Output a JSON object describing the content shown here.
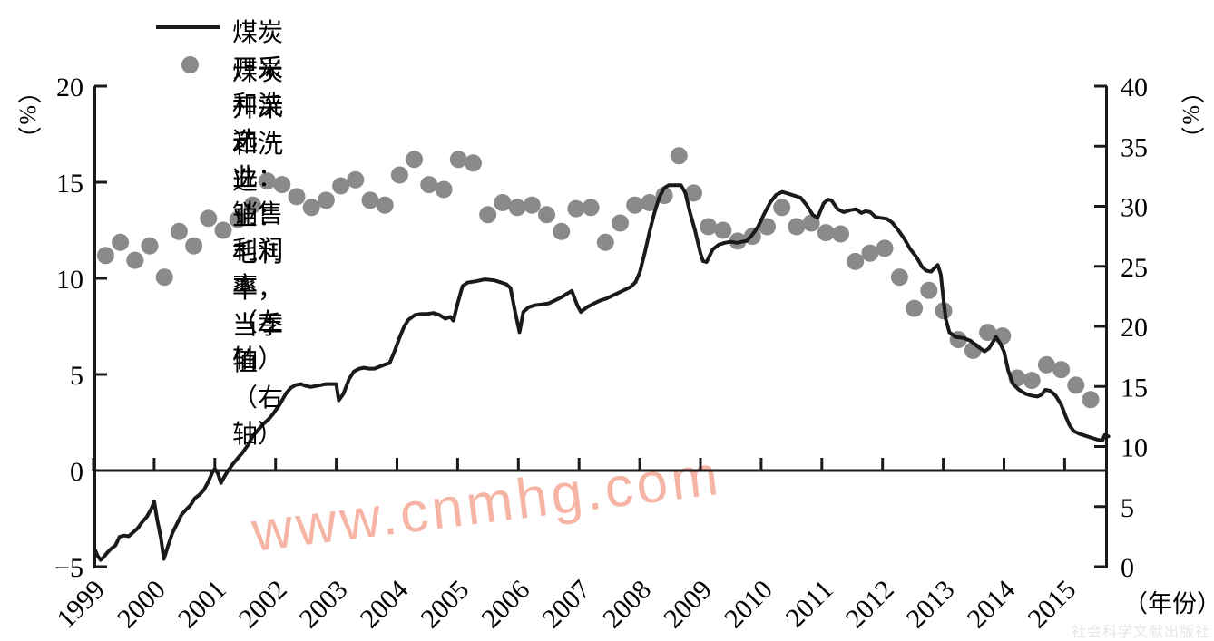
{
  "page": {
    "background": "#ffffff"
  },
  "legend": {
    "items": [
      {
        "label": "煤炭开采和洗选业：销售利润率（左轴）",
        "marker": "line",
        "color": "#1a1a1a"
      },
      {
        "label": "煤炭开采和洗选业：毛利率，当季值（右轴）",
        "marker": "dot",
        "color": "#8a8a8a"
      }
    ]
  },
  "watermark": {
    "text": "www.cnmhg.com",
    "color": "#f5a795"
  },
  "publisher_watermark": {
    "text": "社会科学文献出版社",
    "color": "#e6e6e6"
  },
  "chart_data": {
    "type": "line",
    "title": "",
    "grid": false,
    "left_axis": {
      "unit_label": "（%）",
      "ticks": [
        20,
        15,
        10,
        5,
        0,
        -5
      ],
      "range": [
        -5,
        20
      ]
    },
    "right_axis": {
      "unit_label": "（%）",
      "ticks": [
        40,
        35,
        30,
        25,
        20,
        15,
        10,
        5,
        0
      ],
      "range": [
        0,
        40
      ]
    },
    "x_axis": {
      "label": "（年份）",
      "ticks": [
        1999,
        2000,
        2001,
        2002,
        2003,
        2004,
        2005,
        2006,
        2007,
        2008,
        2009,
        2010,
        2011,
        2012,
        2013,
        2014,
        2015
      ],
      "range": [
        1999,
        2015.75
      ]
    },
    "series": [
      {
        "name": "煤炭开采和洗选业：销售利润率（左轴）",
        "type": "line",
        "axis": "left",
        "color": "#1a1a1a",
        "points": [
          [
            1999.03,
            -4.15
          ],
          [
            1999.07,
            -4.45
          ],
          [
            1999.12,
            -4.65
          ],
          [
            1999.17,
            -4.5
          ],
          [
            1999.22,
            -4.3
          ],
          [
            1999.28,
            -4.1
          ],
          [
            1999.36,
            -3.9
          ],
          [
            1999.43,
            -3.45
          ],
          [
            1999.51,
            -3.38
          ],
          [
            1999.58,
            -3.42
          ],
          [
            1999.66,
            -3.2
          ],
          [
            1999.73,
            -3.0
          ],
          [
            1999.81,
            -2.65
          ],
          [
            1999.88,
            -2.4
          ],
          [
            1999.96,
            -1.95
          ],
          [
            2000.0,
            -1.6
          ],
          [
            2000.05,
            -2.55
          ],
          [
            2000.11,
            -3.5
          ],
          [
            2000.16,
            -4.6
          ],
          [
            2000.23,
            -3.9
          ],
          [
            2000.3,
            -3.25
          ],
          [
            2000.38,
            -2.75
          ],
          [
            2000.45,
            -2.3
          ],
          [
            2000.52,
            -2.05
          ],
          [
            2000.6,
            -1.8
          ],
          [
            2000.67,
            -1.45
          ],
          [
            2000.75,
            -1.25
          ],
          [
            2000.82,
            -1.0
          ],
          [
            2000.89,
            -0.6
          ],
          [
            2000.96,
            -0.1
          ],
          [
            2001.0,
            0.1
          ],
          [
            2001.05,
            -0.15
          ],
          [
            2001.1,
            -0.65
          ],
          [
            2001.16,
            -0.3
          ],
          [
            2001.22,
            0.0
          ],
          [
            2001.3,
            0.35
          ],
          [
            2001.38,
            0.65
          ],
          [
            2001.46,
            0.95
          ],
          [
            2001.54,
            1.3
          ],
          [
            2001.63,
            1.8
          ],
          [
            2001.71,
            2.1
          ],
          [
            2001.79,
            2.4
          ],
          [
            2001.88,
            2.65
          ],
          [
            2001.96,
            2.95
          ],
          [
            2002.08,
            3.5
          ],
          [
            2002.17,
            4.0
          ],
          [
            2002.25,
            4.3
          ],
          [
            2002.33,
            4.45
          ],
          [
            2002.42,
            4.5
          ],
          [
            2002.5,
            4.4
          ],
          [
            2002.58,
            4.35
          ],
          [
            2002.67,
            4.4
          ],
          [
            2002.75,
            4.45
          ],
          [
            2002.83,
            4.5
          ],
          [
            2002.92,
            4.5
          ],
          [
            2003.0,
            4.5
          ],
          [
            2003.04,
            3.65
          ],
          [
            2003.12,
            4.0
          ],
          [
            2003.21,
            4.75
          ],
          [
            2003.29,
            5.15
          ],
          [
            2003.38,
            5.3
          ],
          [
            2003.46,
            5.35
          ],
          [
            2003.54,
            5.3
          ],
          [
            2003.63,
            5.3
          ],
          [
            2003.71,
            5.4
          ],
          [
            2003.79,
            5.5
          ],
          [
            2003.88,
            5.6
          ],
          [
            2003.96,
            6.2
          ],
          [
            2004.04,
            6.9
          ],
          [
            2004.12,
            7.5
          ],
          [
            2004.19,
            7.85
          ],
          [
            2004.3,
            8.1
          ],
          [
            2004.4,
            8.15
          ],
          [
            2004.5,
            8.15
          ],
          [
            2004.6,
            8.2
          ],
          [
            2004.7,
            8.1
          ],
          [
            2004.8,
            7.9
          ],
          [
            2004.88,
            8.0
          ],
          [
            2004.93,
            7.8
          ],
          [
            2005.0,
            8.7
          ],
          [
            2005.08,
            9.6
          ],
          [
            2005.16,
            9.78
          ],
          [
            2005.3,
            9.85
          ],
          [
            2005.45,
            9.95
          ],
          [
            2005.6,
            9.9
          ],
          [
            2005.7,
            9.8
          ],
          [
            2005.8,
            9.7
          ],
          [
            2005.87,
            9.5
          ],
          [
            2005.95,
            8.2
          ],
          [
            2006.02,
            7.2
          ],
          [
            2006.08,
            8.25
          ],
          [
            2006.17,
            8.5
          ],
          [
            2006.27,
            8.6
          ],
          [
            2006.4,
            8.65
          ],
          [
            2006.5,
            8.7
          ],
          [
            2006.6,
            8.85
          ],
          [
            2006.7,
            9.0
          ],
          [
            2006.8,
            9.2
          ],
          [
            2006.88,
            9.35
          ],
          [
            2006.97,
            8.6
          ],
          [
            2007.03,
            8.25
          ],
          [
            2007.13,
            8.5
          ],
          [
            2007.25,
            8.7
          ],
          [
            2007.35,
            8.85
          ],
          [
            2007.45,
            8.95
          ],
          [
            2007.55,
            9.1
          ],
          [
            2007.65,
            9.25
          ],
          [
            2007.75,
            9.4
          ],
          [
            2007.85,
            9.55
          ],
          [
            2007.93,
            9.8
          ],
          [
            2008.0,
            10.3
          ],
          [
            2008.08,
            11.3
          ],
          [
            2008.16,
            12.4
          ],
          [
            2008.24,
            13.4
          ],
          [
            2008.32,
            14.2
          ],
          [
            2008.4,
            14.7
          ],
          [
            2008.48,
            14.85
          ],
          [
            2008.58,
            14.85
          ],
          [
            2008.68,
            14.85
          ],
          [
            2008.75,
            14.45
          ],
          [
            2008.83,
            13.4
          ],
          [
            2008.91,
            12.5
          ],
          [
            2009.0,
            11.3
          ],
          [
            2009.04,
            10.9
          ],
          [
            2009.1,
            10.85
          ],
          [
            2009.2,
            11.5
          ],
          [
            2009.3,
            11.75
          ],
          [
            2009.4,
            11.85
          ],
          [
            2009.5,
            11.9
          ],
          [
            2009.6,
            11.85
          ],
          [
            2009.68,
            11.9
          ],
          [
            2009.76,
            11.95
          ],
          [
            2009.85,
            12.25
          ],
          [
            2009.95,
            12.7
          ],
          [
            2010.05,
            13.35
          ],
          [
            2010.15,
            13.95
          ],
          [
            2010.25,
            14.35
          ],
          [
            2010.35,
            14.5
          ],
          [
            2010.45,
            14.4
          ],
          [
            2010.55,
            14.3
          ],
          [
            2010.65,
            14.2
          ],
          [
            2010.75,
            13.8
          ],
          [
            2010.85,
            13.3
          ],
          [
            2010.93,
            13.15
          ],
          [
            2011.03,
            13.9
          ],
          [
            2011.1,
            14.1
          ],
          [
            2011.16,
            14.05
          ],
          [
            2011.26,
            13.6
          ],
          [
            2011.36,
            13.45
          ],
          [
            2011.47,
            13.55
          ],
          [
            2011.56,
            13.6
          ],
          [
            2011.65,
            13.4
          ],
          [
            2011.72,
            13.5
          ],
          [
            2011.8,
            13.45
          ],
          [
            2011.88,
            13.2
          ],
          [
            2011.96,
            13.15
          ],
          [
            2012.07,
            13.1
          ],
          [
            2012.16,
            12.9
          ],
          [
            2012.26,
            12.5
          ],
          [
            2012.36,
            12.05
          ],
          [
            2012.45,
            11.55
          ],
          [
            2012.56,
            11.1
          ],
          [
            2012.65,
            10.6
          ],
          [
            2012.72,
            10.4
          ],
          [
            2012.8,
            10.35
          ],
          [
            2012.86,
            10.55
          ],
          [
            2012.91,
            10.7
          ],
          [
            2012.96,
            10.2
          ],
          [
            2013.0,
            9.0
          ],
          [
            2013.04,
            7.9
          ],
          [
            2013.1,
            7.2
          ],
          [
            2013.2,
            6.95
          ],
          [
            2013.33,
            6.9
          ],
          [
            2013.45,
            6.75
          ],
          [
            2013.57,
            6.45
          ],
          [
            2013.68,
            6.2
          ],
          [
            2013.75,
            6.35
          ],
          [
            2013.82,
            6.7
          ],
          [
            2013.87,
            6.95
          ],
          [
            2013.94,
            6.6
          ],
          [
            2014.0,
            6.2
          ],
          [
            2014.07,
            5.2
          ],
          [
            2014.15,
            4.5
          ],
          [
            2014.25,
            4.2
          ],
          [
            2014.35,
            4.0
          ],
          [
            2014.45,
            3.9
          ],
          [
            2014.55,
            3.85
          ],
          [
            2014.62,
            3.95
          ],
          [
            2014.68,
            4.2
          ],
          [
            2014.76,
            4.15
          ],
          [
            2014.85,
            3.9
          ],
          [
            2014.94,
            3.45
          ],
          [
            2015.02,
            2.8
          ],
          [
            2015.08,
            2.35
          ],
          [
            2015.15,
            2.05
          ],
          [
            2015.25,
            1.9
          ],
          [
            2015.35,
            1.8
          ],
          [
            2015.45,
            1.7
          ],
          [
            2015.55,
            1.6
          ],
          [
            2015.62,
            1.55
          ],
          [
            2015.66,
            1.85
          ],
          [
            2015.72,
            1.78
          ]
        ]
      },
      {
        "name": "煤炭开采和洗选业：毛利率，当季值（右轴）",
        "type": "scatter",
        "axis": "right",
        "color": "#8a8a8a",
        "frequency": "quarterly",
        "start": "1999Q1",
        "x_first": 1999.2,
        "x_step": 0.2422,
        "values": [
          25.9,
          27.0,
          25.5,
          26.7,
          24.1,
          27.9,
          26.7,
          29.0,
          28.0,
          28.9,
          30.1,
          32.1,
          31.8,
          30.8,
          29.9,
          30.5,
          31.7,
          32.2,
          30.5,
          30.1,
          32.6,
          33.9,
          31.8,
          31.4,
          33.9,
          33.6,
          29.3,
          30.3,
          29.9,
          30.1,
          29.3,
          27.9,
          29.8,
          29.9,
          27.0,
          28.6,
          30.1,
          30.3,
          30.9,
          34.2,
          31.1,
          28.3,
          28.0,
          27.1,
          27.5,
          28.3,
          29.9,
          28.3,
          28.6,
          27.8,
          27.7,
          25.4,
          26.1,
          26.5,
          24.1,
          21.5,
          23.0,
          21.3,
          18.9,
          18.0,
          19.5,
          19.2,
          15.7,
          15.5,
          16.8,
          16.4,
          15.1,
          13.9
        ]
      }
    ]
  }
}
